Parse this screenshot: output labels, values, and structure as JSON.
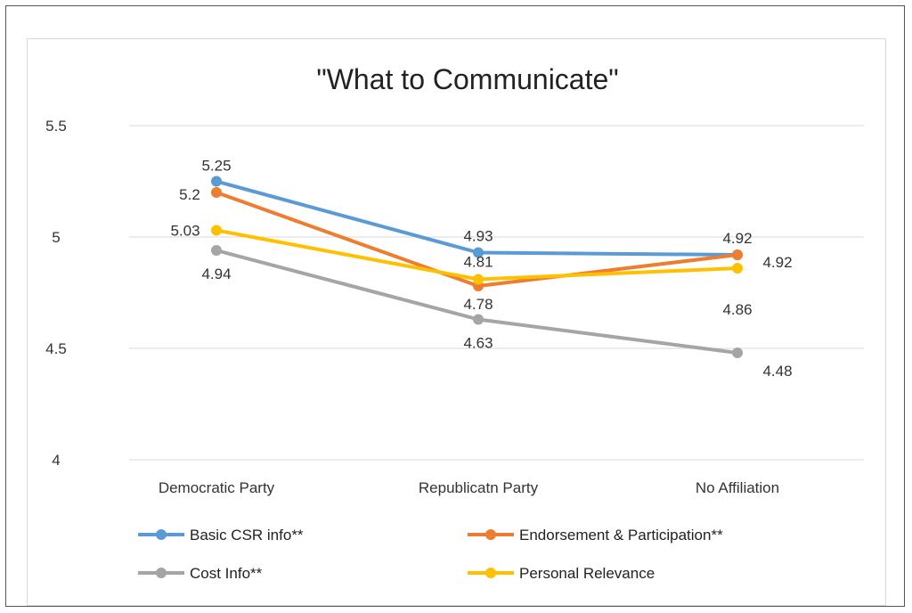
{
  "chart_data": {
    "type": "line",
    "title": "\"What to Communicate\"",
    "categories": [
      "Democratic Party",
      "Republicatn Party",
      "No Affiliation"
    ],
    "ylim": [
      4,
      5.5
    ],
    "yticks": [
      "4",
      "4.5",
      "5",
      "5.5"
    ],
    "grid": true,
    "legend_position": "bottom",
    "series": [
      {
        "name": "Basic CSR info**",
        "color": "#5b9bd5",
        "values": [
          5.25,
          4.93,
          4.92
        ],
        "labels": [
          "5.25",
          "4.93",
          "4.92"
        ]
      },
      {
        "name": "Endorsement & Participation**",
        "color": "#ed7d31",
        "values": [
          5.2,
          4.78,
          4.92
        ],
        "labels": [
          "5.2",
          "4.78",
          "4.92"
        ]
      },
      {
        "name": "Cost Info**",
        "color": "#a5a5a5",
        "values": [
          4.94,
          4.63,
          4.48
        ],
        "labels": [
          "4.94",
          "4.63",
          "4.48"
        ]
      },
      {
        "name": "Personal Relevance",
        "color": "#ffc000",
        "values": [
          5.03,
          4.81,
          4.86
        ],
        "labels": [
          "5.03",
          "4.81",
          "4.86"
        ]
      }
    ]
  }
}
